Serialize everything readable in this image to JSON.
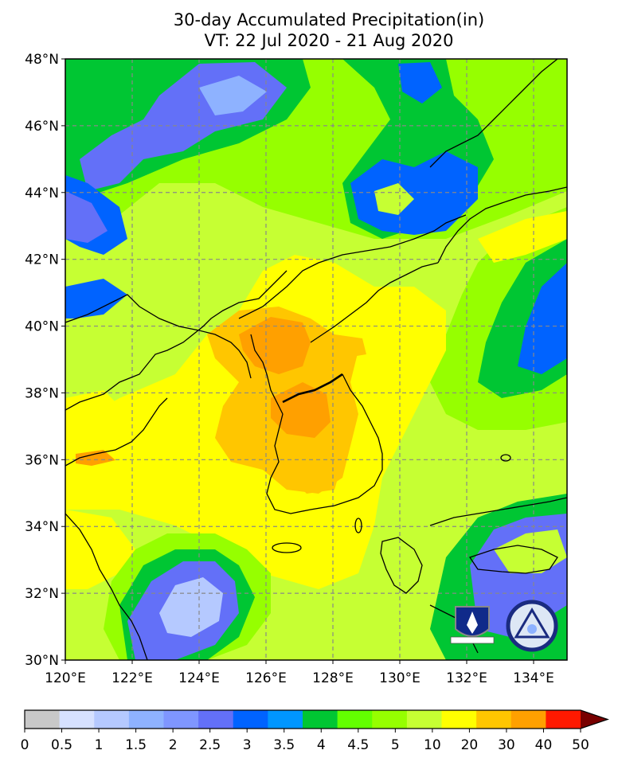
{
  "title": {
    "line1": "30-day Accumulated Precipitation(in)",
    "line2": "VT: 22 Jul 2020 - 21 Aug 2020"
  },
  "map": {
    "lon_range": [
      120,
      135
    ],
    "lat_range": [
      30,
      48
    ],
    "lat_labels": [
      "48°N",
      "46°N",
      "44°N",
      "42°N",
      "40°N",
      "38°N",
      "36°N",
      "34°N",
      "32°N",
      "30°N"
    ],
    "lon_labels": [
      "120°E",
      "122°E",
      "124°E",
      "126°E",
      "128°E",
      "130°E",
      "132°E",
      "134°E"
    ],
    "grid": "dashed gray every 2°",
    "logos": [
      "airforce-shield",
      "weather-squadron-seal"
    ]
  },
  "colorbar": {
    "labels": [
      "0",
      "0.5",
      "1",
      "1.5",
      "2",
      "2.5",
      "3",
      "3.5",
      "4",
      "4.5",
      "5",
      "10",
      "20",
      "30",
      "40",
      "50"
    ],
    "colors": [
      "#c8c8c8",
      "#d6e1ff",
      "#b5c9ff",
      "#8eb2ff",
      "#7f96ff",
      "#6370f8",
      "#0063ff",
      "#0096ff",
      "#00c633",
      "#63ff00",
      "#96ff00",
      "#c6ff33",
      "#ffff00",
      "#ffc600",
      "#ffa000",
      "#ff1900"
    ],
    "extend_color": "#780000"
  },
  "palette": {
    "ocean_bg": "#c6ff33",
    "green": "#96ff00",
    "bright_green": "#63ff00",
    "dark_green": "#00c633",
    "blue": "#0063ff",
    "light_blue": "#b5c9ff",
    "yellow": "#ffff00",
    "gold": "#ffc600",
    "orange": "#ffa000"
  }
}
